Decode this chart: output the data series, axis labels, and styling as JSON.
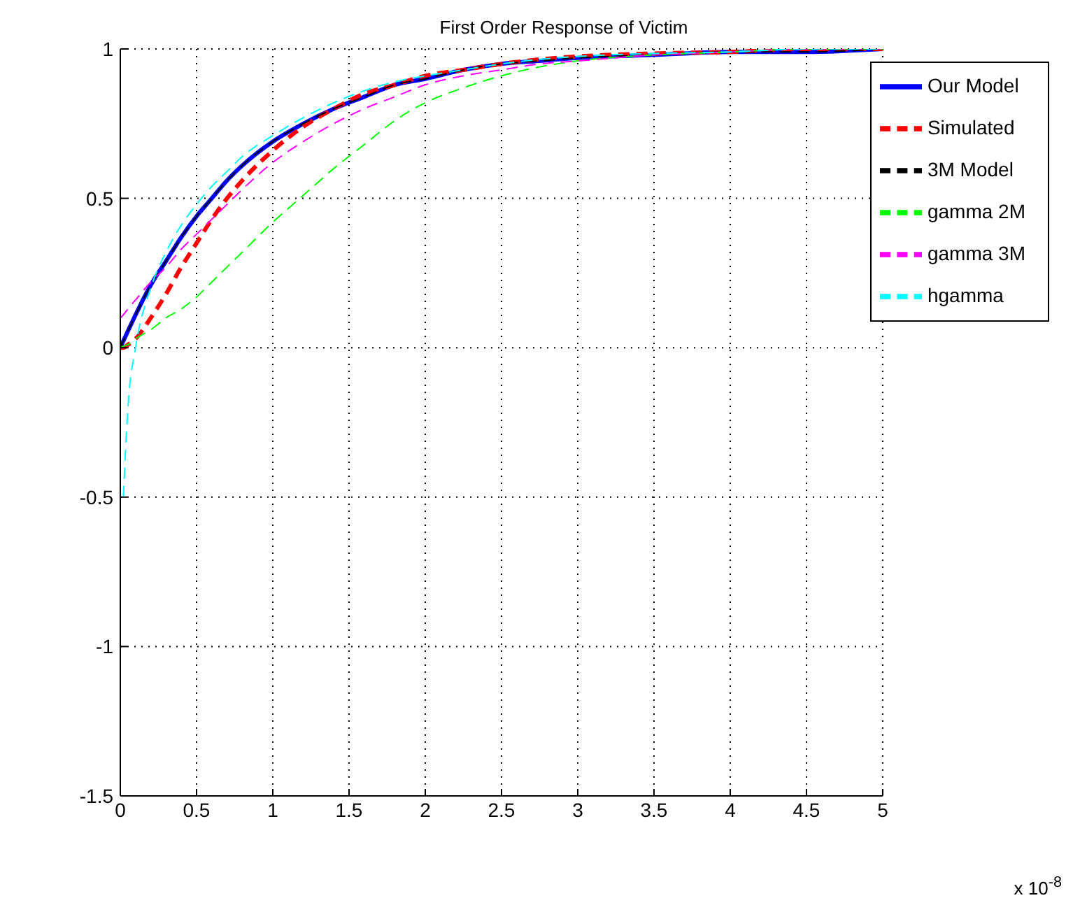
{
  "chart_data": {
    "type": "line",
    "title": "First Order Response of Victim",
    "annotations": [
      "x 10$^{-8}$"
    ],
    "x": [
      0,
      0.02,
      0.05,
      0.1,
      0.2,
      0.3,
      0.4,
      0.5,
      0.6,
      0.7,
      0.8,
      1,
      1.2,
      1.4,
      1.6,
      1.8,
      2,
      2.25,
      2.5,
      2.75,
      3,
      3.5,
      4,
      4.5,
      5
    ],
    "series": [
      {
        "name": "Our Model",
        "color": "#0000ff",
        "line_style": "solid",
        "values": [
          0,
          0.023,
          0.056,
          0.11,
          0.21,
          0.29,
          0.37,
          0.44,
          0.5,
          0.56,
          0.61,
          0.69,
          0.75,
          0.8,
          0.84,
          0.88,
          0.9,
          0.93,
          0.95,
          0.96,
          0.97,
          0.98,
          0.99,
          0.99,
          1
        ]
      },
      {
        "name": "Simulated",
        "color": "#ff0000",
        "line_style": "dashed",
        "values": [
          0,
          0,
          0.01,
          0.03,
          0.1,
          0.18,
          0.27,
          0.35,
          0.43,
          0.5,
          0.56,
          0.66,
          0.74,
          0.8,
          0.85,
          0.88,
          0.91,
          0.93,
          0.95,
          0.965,
          0.975,
          0.985,
          0.99,
          1,
          1
        ]
      },
      {
        "name": "3M Model",
        "color": "#000000",
        "line_style": "dashed",
        "values": [
          0,
          0.023,
          0.056,
          0.11,
          0.21,
          0.29,
          0.37,
          0.44,
          0.5,
          0.56,
          0.61,
          0.69,
          0.75,
          0.8,
          0.84,
          0.88,
          0.9,
          0.93,
          0.95,
          0.96,
          0.97,
          0.98,
          0.99,
          0.99,
          1
        ]
      },
      {
        "name": "gamma 2M",
        "color": "#00ff00",
        "line_style": "dashed",
        "values": [
          0,
          0.005,
          0.01,
          0.03,
          0.06,
          0.1,
          0.13,
          0.17,
          0.22,
          0.27,
          0.32,
          0.42,
          0.51,
          0.6,
          0.68,
          0.76,
          0.82,
          0.87,
          0.91,
          0.94,
          0.96,
          0.98,
          0.99,
          1,
          1
        ]
      },
      {
        "name": "gamma 3M",
        "color": "#ff00ff",
        "line_style": "dashed",
        "values": [
          0.1,
          0.11,
          0.13,
          0.16,
          0.22,
          0.27,
          0.33,
          0.38,
          0.43,
          0.48,
          0.53,
          0.62,
          0.69,
          0.75,
          0.8,
          0.84,
          0.88,
          0.91,
          0.93,
          0.95,
          0.96,
          0.98,
          0.99,
          1,
          1
        ]
      },
      {
        "name": "hgamma",
        "color": "#00ffff",
        "line_style": "dashed",
        "values": [
          null,
          -0.5,
          -0.2,
          0,
          0.2,
          0.32,
          0.41,
          0.48,
          0.54,
          0.59,
          0.64,
          0.71,
          0.77,
          0.82,
          0.86,
          0.89,
          0.91,
          0.93,
          0.95,
          0.965,
          0.975,
          0.985,
          0.99,
          1,
          1
        ]
      }
    ],
    "xlim": [
      0,
      5
    ],
    "xticks": [
      0,
      0.5,
      1,
      1.5,
      2,
      2.5,
      3,
      3.5,
      4,
      4.5,
      5
    ],
    "ylim": [
      -1.5,
      1
    ],
    "yticks": [
      -1.5,
      -1,
      -0.5,
      0,
      0.5,
      1
    ],
    "grid": true,
    "legend": "top right"
  }
}
